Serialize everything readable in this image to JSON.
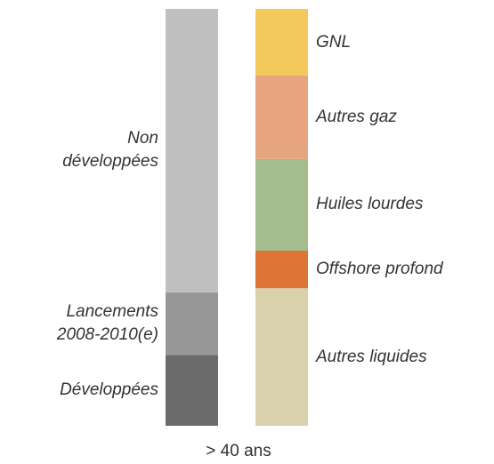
{
  "chart_data": {
    "type": "stacked_bar",
    "xlabel": "> 40 ans",
    "ylim": [
      0,
      100
    ],
    "bars": [
      {
        "label_side": "left",
        "segments": [
          {
            "name": "Développées",
            "color": "#6b6b6b",
            "value": 17
          },
          {
            "name": "Lancements\n2008-2010(e)",
            "color": "#979797",
            "value": 15
          },
          {
            "name": "Non\ndéveloppées",
            "color": "#c0c0c0",
            "value": 68
          }
        ]
      },
      {
        "label_side": "right",
        "segments": [
          {
            "name": "Autres liquides",
            "color": "#d9d0ac",
            "value": 33
          },
          {
            "name": "Offshore profond",
            "color": "#dc7535",
            "value": 9
          },
          {
            "name": "Huiles lourdes",
            "color": "#a5bd8c",
            "value": 22
          },
          {
            "name": "Autres gaz",
            "color": "#e6a57e",
            "value": 20
          },
          {
            "name": "GNL",
            "color": "#f3c95b",
            "value": 16
          }
        ]
      }
    ]
  }
}
